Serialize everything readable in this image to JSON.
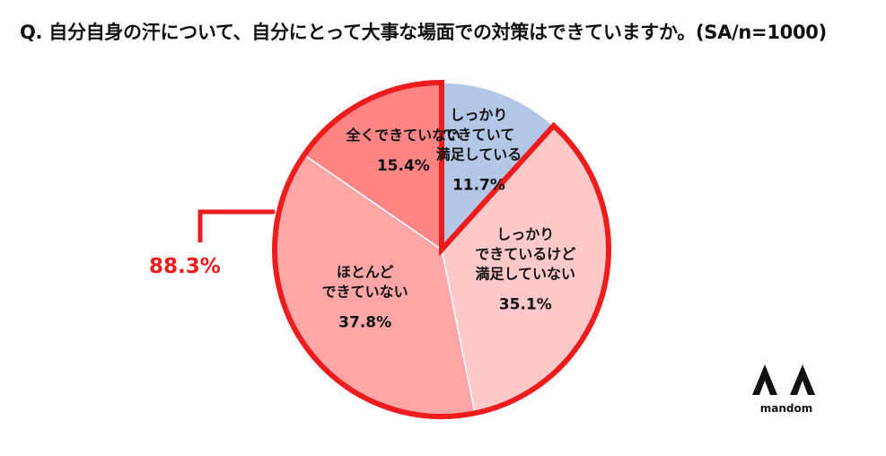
{
  "title": "Q. 自分自身の汗について、自分にとって大事な場面での対策はできていますか。(SA/n=1000)",
  "chart_data": {
    "type": "pie",
    "slices": [
      {
        "label_lines": [
          "しっかり",
          "できていて",
          "満足している"
        ],
        "value": 11.7,
        "pct_label": "11.7%",
        "color": "#b4c7e7"
      },
      {
        "label_lines": [
          "しっかり",
          "できているけど",
          "満足していない"
        ],
        "value": 35.1,
        "pct_label": "35.1%",
        "color": "#ffc9c9"
      },
      {
        "label_lines": [
          "ほとんど",
          "できていない"
        ],
        "value": 37.8,
        "pct_label": "37.8%",
        "color": "#ffa6a6"
      },
      {
        "label_lines": [
          "全くできていない"
        ],
        "value": 15.4,
        "pct_label": "15.4%",
        "color": "#ff8585"
      }
    ],
    "highlight": {
      "label": "88.3%",
      "color": "#ee1c1c"
    }
  },
  "brand": {
    "name": "mandom",
    "mark": "ΛΛ"
  }
}
